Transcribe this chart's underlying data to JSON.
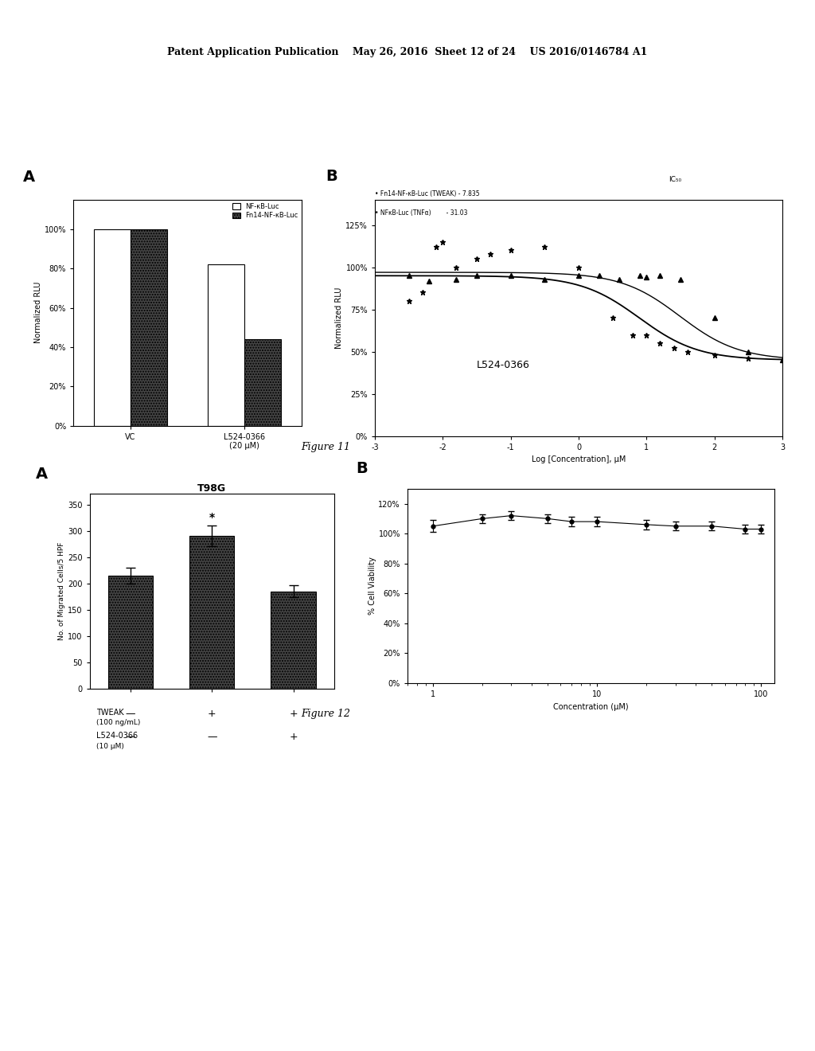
{
  "header_text": "Patent Application Publication    May 26, 2016  Sheet 12 of 24    US 2016/0146784 A1",
  "A_bar_nfkb": [
    100,
    82
  ],
  "A_bar_fn14": [
    100,
    44
  ],
  "A_ylabel": "Normalized RLU",
  "A_ytick_labels": [
    "0%",
    "20%",
    "40%",
    "60%",
    "80%",
    "100%"
  ],
  "A_legend1": "NF-κB-Luc",
  "A_legend2": "Fn14-NF-κB-Luc",
  "B_xlabel": "Log [Concentration], μM",
  "B_ylabel": "Normalized RLU",
  "B_ytick_labels": [
    "0%",
    "25%",
    "50%",
    "75%",
    "100%",
    "125%"
  ],
  "B_xticks": [
    -3,
    -2,
    -1,
    0,
    1,
    2,
    3
  ],
  "B_fn14_ic50": "7.835",
  "B_nfkb_ic50": "31.03",
  "B_annotation": "L524-0366",
  "C_title": "T98G",
  "C_ylabel": "No. of Migrated Cells/5 HPF",
  "C_yticks": [
    0,
    50,
    100,
    150,
    200,
    250,
    300,
    350
  ],
  "C_bar1": 215,
  "C_bar2": 290,
  "C_bar3": 185,
  "C_err1": 15,
  "C_err2": 20,
  "C_err3": 12,
  "D_xlabel": "Concentration (μM)",
  "D_ylabel": "% Cell Viability",
  "D_ytick_labels": [
    "0%",
    "20%",
    "40%",
    "60%",
    "80%",
    "100%",
    "120%"
  ]
}
